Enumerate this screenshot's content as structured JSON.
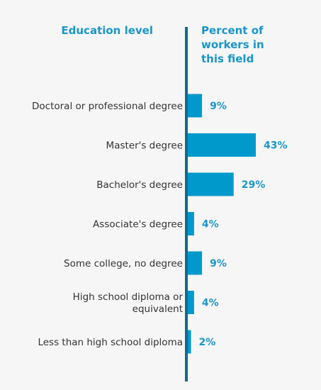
{
  "headers": {
    "left": "Education level",
    "right_lines": [
      "Percent of",
      "workers in",
      "this field"
    ]
  },
  "colors": {
    "bar": "#0099cc",
    "axis": "#0f6b8c",
    "value_text": "#1a96c8",
    "label_text": "#333333"
  },
  "chart_data": {
    "type": "bar",
    "orientation": "horizontal",
    "categories": [
      [
        "Doctoral or professional degree"
      ],
      [
        "Master's degree"
      ],
      [
        "Bachelor's degree"
      ],
      [
        "Associate's degree"
      ],
      [
        "Some college, no degree"
      ],
      [
        "High school diploma or",
        "equivalent"
      ],
      [
        "Less than high school diploma"
      ]
    ],
    "values": [
      9,
      43,
      29,
      4,
      9,
      4,
      2
    ],
    "value_labels": [
      "9%",
      "43%",
      "29%",
      "4%",
      "9%",
      "4%",
      "2%"
    ],
    "unit": "%",
    "grid": false,
    "legend": "none"
  }
}
